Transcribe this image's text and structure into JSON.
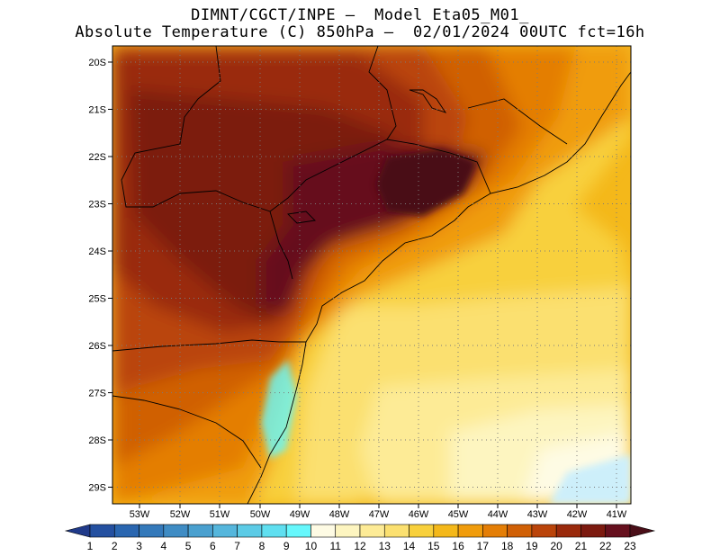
{
  "title": {
    "line1": "DIMNT/CGCT/INPE –  Model Eta05_M01_",
    "line2": "Absolute Temperature (C) 850hPa –  02/01/2024 00UTC fct=16h"
  },
  "map": {
    "lat_labels": [
      "20S",
      "21S",
      "22S",
      "23S",
      "24S",
      "25S",
      "26S",
      "27S",
      "28S",
      "29S"
    ],
    "lon_labels": [
      "53W",
      "52W",
      "51W",
      "50W",
      "49W",
      "48W",
      "47W",
      "46W",
      "45W",
      "44W",
      "43W",
      "42W",
      "41W"
    ]
  },
  "colorbar": {
    "labels": [
      "1",
      "2",
      "3",
      "4",
      "5",
      "6",
      "7",
      "8",
      "9",
      "10",
      "11",
      "12",
      "13",
      "14",
      "15",
      "16",
      "17",
      "18",
      "19",
      "20",
      "21",
      "22",
      "23"
    ],
    "colors": [
      "#203a8a",
      "#2450a0",
      "#2a66b0",
      "#3479ba",
      "#3f8cc4",
      "#4aa0cf",
      "#55b6dc",
      "#5ccbe6",
      "#5fdff0",
      "#66f7fc",
      "#fefbe4",
      "#fdf5c0",
      "#fdeb96",
      "#fbe070",
      "#f8d03c",
      "#f4b81a",
      "#f09c0c",
      "#e47e06",
      "#d06006",
      "#ba440a",
      "#9a2a0c",
      "#7c1a10",
      "#66101e",
      "#4a0e18"
    ]
  }
}
